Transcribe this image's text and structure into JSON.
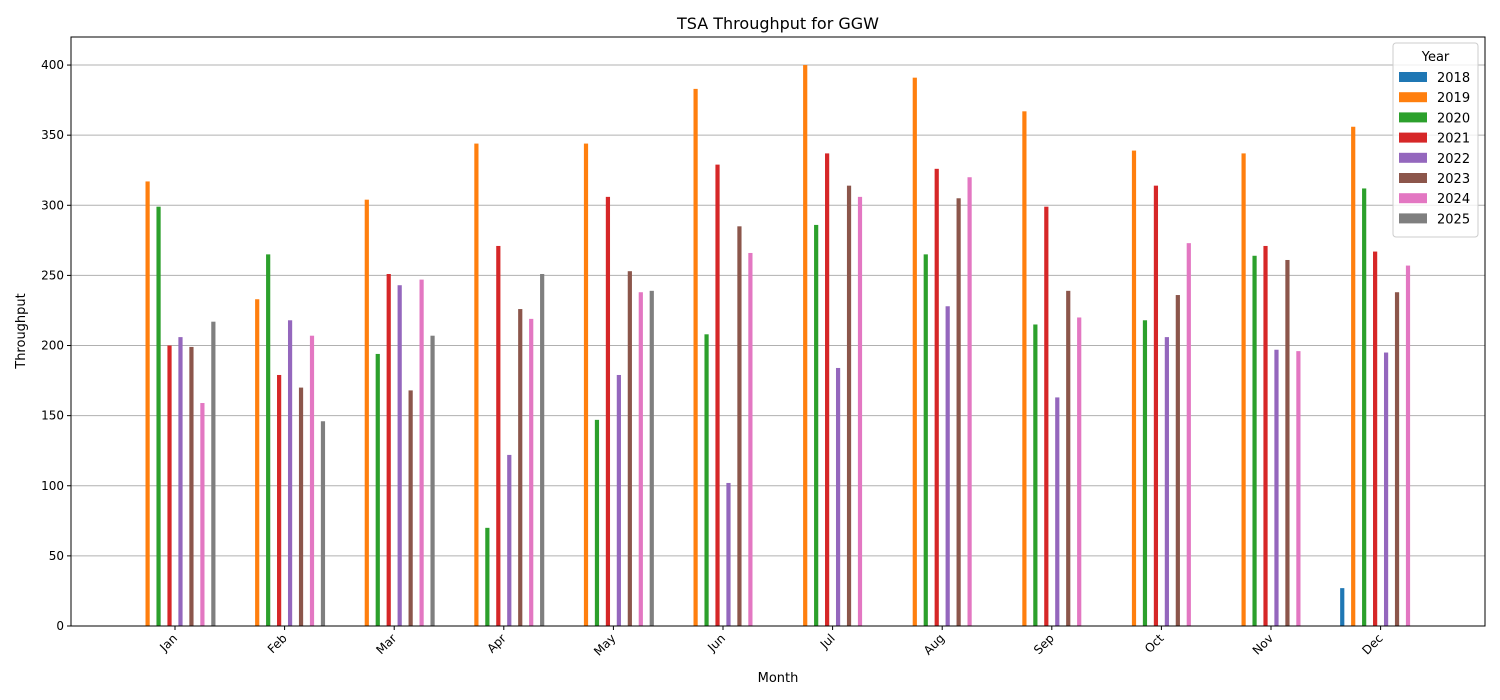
{
  "chart_data": {
    "type": "bar",
    "title": "TSA Throughput for GGW",
    "xlabel": "Month",
    "ylabel": "Throughput",
    "ylim": [
      0,
      420
    ],
    "yticks": [
      0,
      50,
      100,
      150,
      200,
      250,
      300,
      350,
      400
    ],
    "grid": "y-major",
    "legend": {
      "title": "Year",
      "placement": "top-right"
    },
    "categories": [
      "Jan",
      "Feb",
      "Mar",
      "Apr",
      "May",
      "Jun",
      "Jul",
      "Aug",
      "Sep",
      "Oct",
      "Nov",
      "Dec"
    ],
    "series": [
      {
        "name": "2018",
        "color": "#1f77b4",
        "values": [
          0,
          0,
          0,
          0,
          0,
          0,
          0,
          0,
          0,
          0,
          0,
          27
        ]
      },
      {
        "name": "2019",
        "color": "#ff7f0e",
        "values": [
          317,
          233,
          304,
          344,
          344,
          383,
          400,
          391,
          367,
          339,
          337,
          356
        ]
      },
      {
        "name": "2020",
        "color": "#2ca02c",
        "values": [
          299,
          265,
          194,
          70,
          147,
          208,
          286,
          265,
          215,
          218,
          264,
          312
        ]
      },
      {
        "name": "2021",
        "color": "#d62728",
        "values": [
          200,
          179,
          251,
          271,
          306,
          329,
          337,
          326,
          299,
          314,
          271,
          267
        ]
      },
      {
        "name": "2022",
        "color": "#9467bd",
        "values": [
          206,
          218,
          243,
          122,
          179,
          102,
          184,
          228,
          163,
          206,
          197,
          195
        ]
      },
      {
        "name": "2023",
        "color": "#8c564b",
        "values": [
          199,
          170,
          168,
          226,
          253,
          285,
          314,
          305,
          239,
          236,
          261,
          238
        ]
      },
      {
        "name": "2024",
        "color": "#e377c2",
        "values": [
          159,
          207,
          247,
          219,
          238,
          266,
          306,
          320,
          220,
          273,
          196,
          257
        ]
      },
      {
        "name": "2025",
        "color": "#7f7f7f",
        "values": [
          217,
          146,
          207,
          251,
          239,
          0,
          0,
          0,
          0,
          0,
          0,
          0
        ]
      }
    ]
  }
}
